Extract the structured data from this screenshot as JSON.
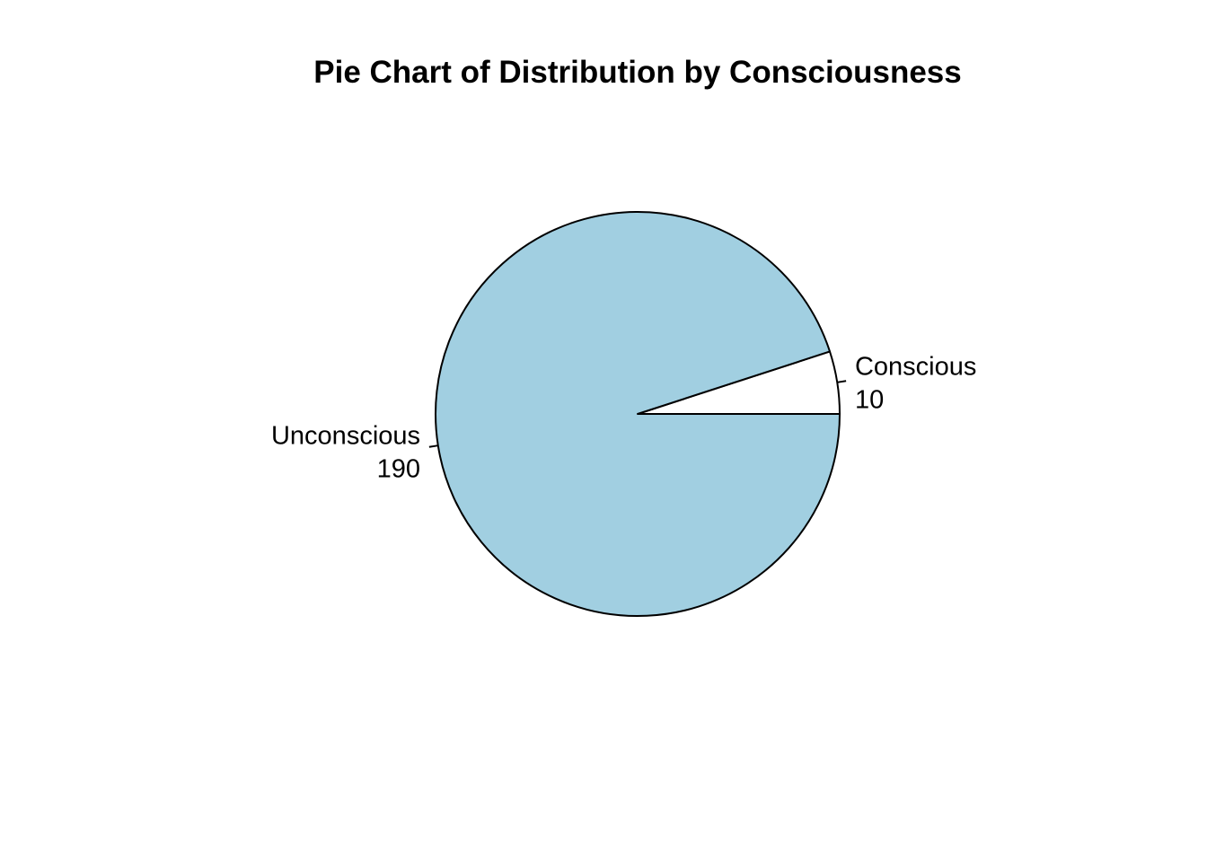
{
  "chart_data": {
    "type": "pie",
    "title": "Pie Chart of Distribution by Consciousness",
    "slices": [
      {
        "label": "Conscious",
        "value": 10,
        "color": "#ffffff"
      },
      {
        "label": "Unconscious",
        "value": 190,
        "color": "#a1cfe1"
      }
    ],
    "border_color": "#000000",
    "direction": "counterclockwise",
    "start": "right",
    "legend": "none"
  }
}
